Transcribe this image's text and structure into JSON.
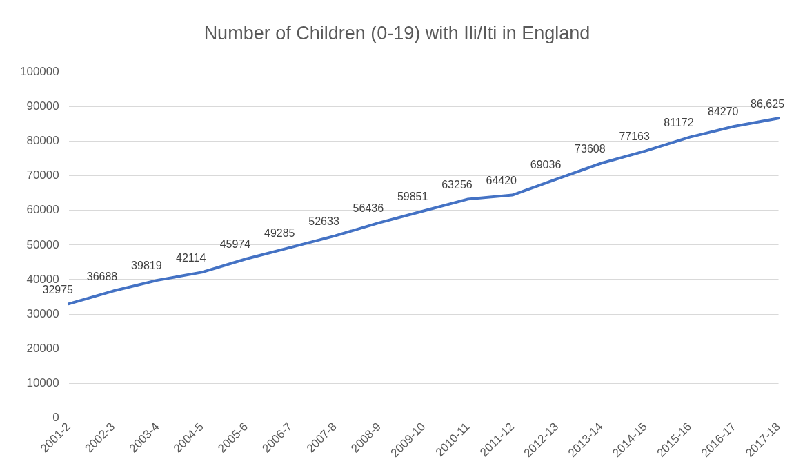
{
  "chart_data": {
    "type": "line",
    "title": "Number of Children (0-19) with Ili/Iti in England",
    "categories": [
      "2001-2",
      "2002-3",
      "2003-4",
      "2004-5",
      "2005-6",
      "2006-7",
      "2007-8",
      "2008-9",
      "2009-10",
      "2010-11",
      "2011-12",
      "2012-13",
      "2013-14",
      "2014-15",
      "2015-16",
      "2016-17",
      "2017-18"
    ],
    "series": [
      {
        "color": "#4472c4",
        "values": [
          32975,
          36688,
          39819,
          42114,
          45974,
          49285,
          52633,
          56436,
          59851,
          63256,
          64420,
          69036,
          73608,
          77163,
          81172,
          84270,
          86625
        ],
        "value_labels": [
          "32975",
          "36688",
          "39819",
          "42114",
          "45974",
          "49285",
          "52633",
          "56436",
          "59851",
          "63256",
          "64420",
          "69036",
          "73608",
          "77163",
          "81172",
          "84270",
          "86,625"
        ]
      }
    ],
    "ylim": [
      0,
      100000
    ],
    "yticks": [
      0,
      10000,
      20000,
      30000,
      40000,
      50000,
      60000,
      70000,
      80000,
      90000,
      100000
    ],
    "grid": "y",
    "legend": false,
    "marker": "none",
    "line_style": "solid"
  }
}
